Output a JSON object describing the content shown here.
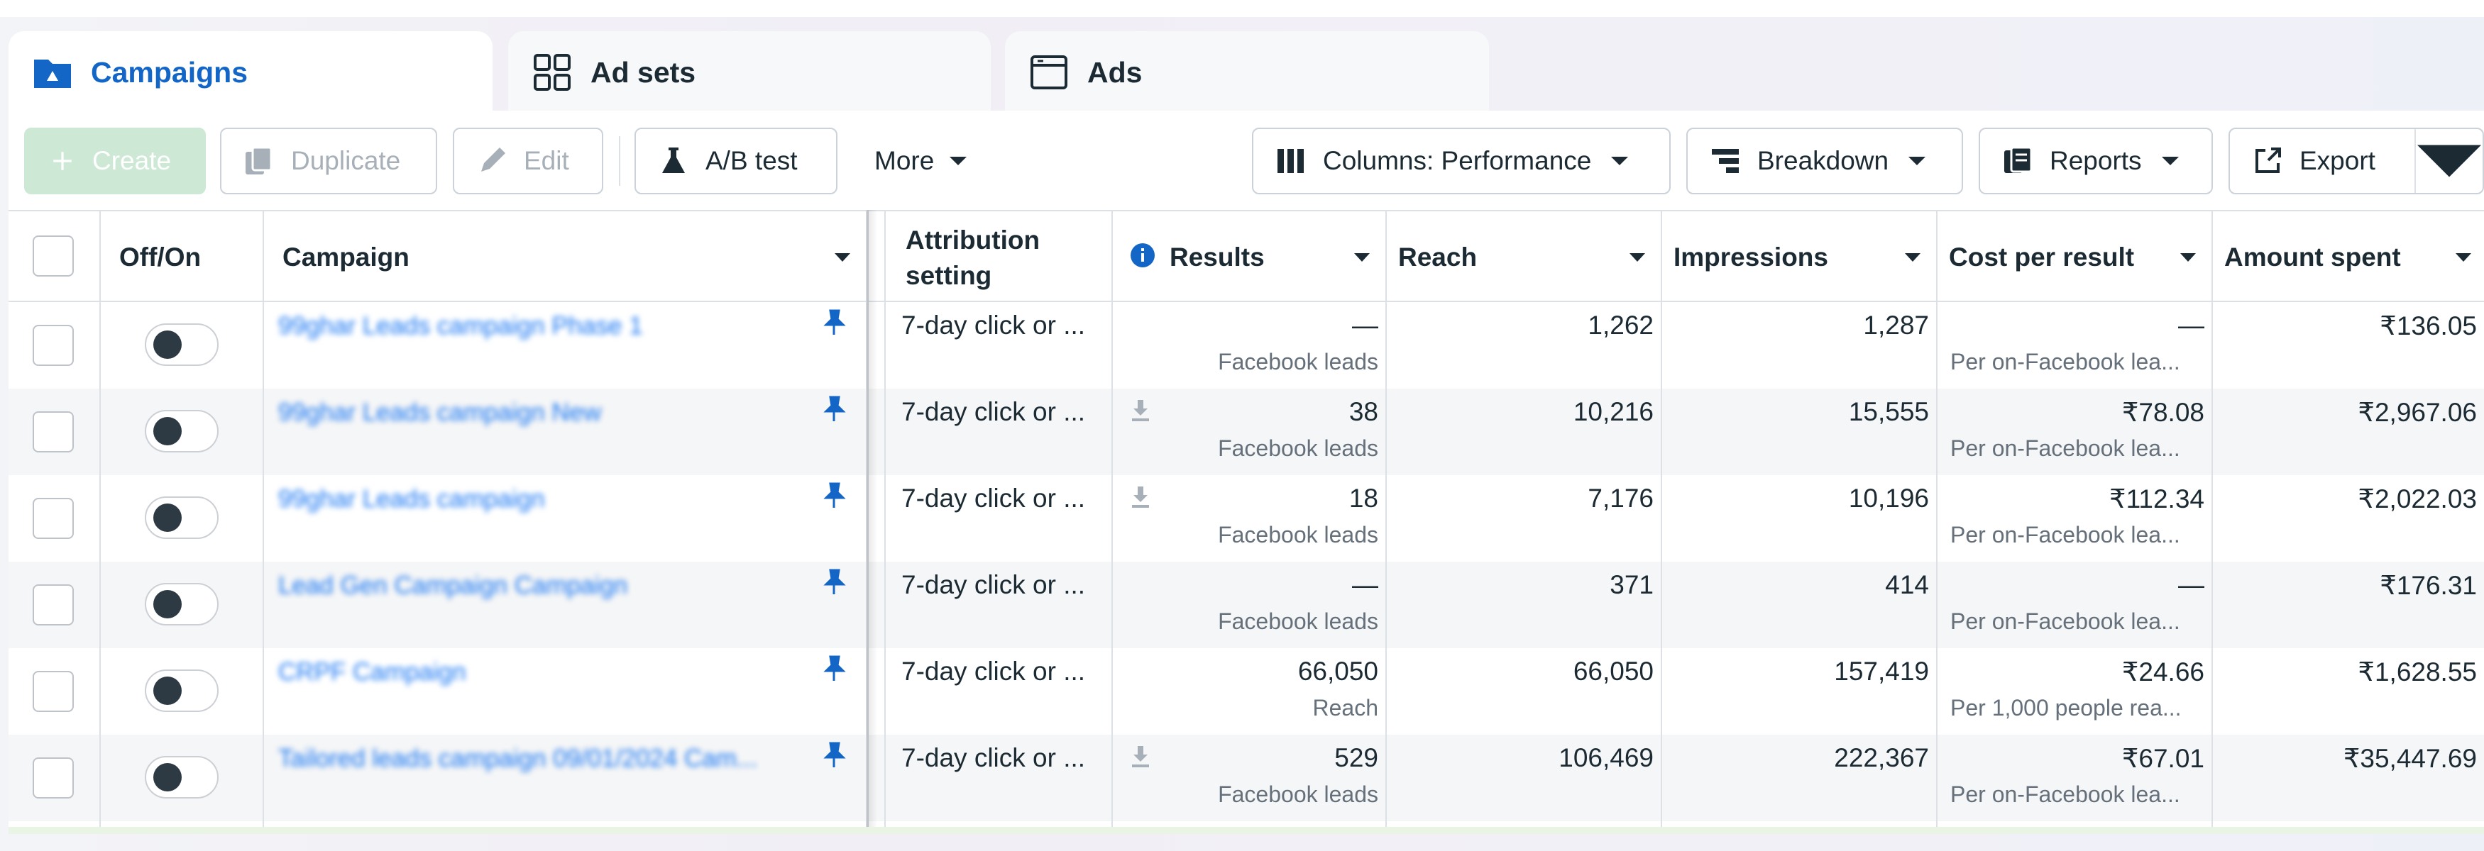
{
  "tabs": [
    {
      "label": "Campaigns",
      "icon": "folder-icon",
      "active": true
    },
    {
      "label": "Ad sets",
      "icon": "grid-icon",
      "active": false
    },
    {
      "label": "Ads",
      "icon": "ad-frame-icon",
      "active": false
    }
  ],
  "toolbar": {
    "create": "Create",
    "duplicate": "Duplicate",
    "edit": "Edit",
    "ab_test": "A/B test",
    "more": "More",
    "columns": "Columns: Performance",
    "breakdown": "Breakdown",
    "reports": "Reports",
    "export": "Export"
  },
  "table": {
    "headers": {
      "offon": "Off/On",
      "campaign": "Campaign",
      "attribution_line1": "Attribution",
      "attribution_line2": "setting",
      "results": "Results",
      "reach": "Reach",
      "impressions": "Impressions",
      "cost_per_result": "Cost per result",
      "amount_spent": "Amount spent"
    },
    "rows": [
      {
        "campaign": "99ghar Leads campaign Phase 1",
        "attribution": "7-day click or ...",
        "results": "—",
        "results_sub": "Facebook leads",
        "reach": "1,262",
        "impressions": "1,287",
        "cost": "—",
        "cost_sub": "Per on-Facebook lea...",
        "spent": "₹136.05",
        "download": false
      },
      {
        "campaign": "99ghar Leads campaign New",
        "attribution": "7-day click or ...",
        "results": "38",
        "results_sub": "Facebook leads",
        "reach": "10,216",
        "impressions": "15,555",
        "cost": "₹78.08",
        "cost_sub": "Per on-Facebook lea...",
        "spent": "₹2,967.06",
        "download": true
      },
      {
        "campaign": "99ghar Leads campaign",
        "attribution": "7-day click or ...",
        "results": "18",
        "results_sub": "Facebook leads",
        "reach": "7,176",
        "impressions": "10,196",
        "cost": "₹112.34",
        "cost_sub": "Per on-Facebook lea...",
        "spent": "₹2,022.03",
        "download": true
      },
      {
        "campaign": "Lead Gen Campaign Campaign",
        "attribution": "7-day click or ...",
        "results": "—",
        "results_sub": "Facebook leads",
        "reach": "371",
        "impressions": "414",
        "cost": "—",
        "cost_sub": "Per on-Facebook lea...",
        "spent": "₹176.31",
        "download": false
      },
      {
        "campaign": "CRPF Campaign",
        "attribution": "7-day click or ...",
        "results": "66,050",
        "results_sub": "Reach",
        "reach": "66,050",
        "impressions": "157,419",
        "cost": "₹24.66",
        "cost_sub": "Per 1,000 people rea...",
        "spent": "₹1,628.55",
        "download": false
      },
      {
        "campaign": "Tailored leads campaign 09/01/2024 Cam...",
        "attribution": "7-day click or ...",
        "results": "529",
        "results_sub": "Facebook leads",
        "reach": "106,469",
        "impressions": "222,367",
        "cost": "₹67.01",
        "cost_sub": "Per on-Facebook lea...",
        "spent": "₹35,447.69",
        "download": true
      }
    ]
  },
  "colors": {
    "accent": "#1466c6",
    "link": "#1876f2",
    "text": "#1c2b33",
    "muted": "#65707b",
    "create_bg": "#cde9d6"
  }
}
